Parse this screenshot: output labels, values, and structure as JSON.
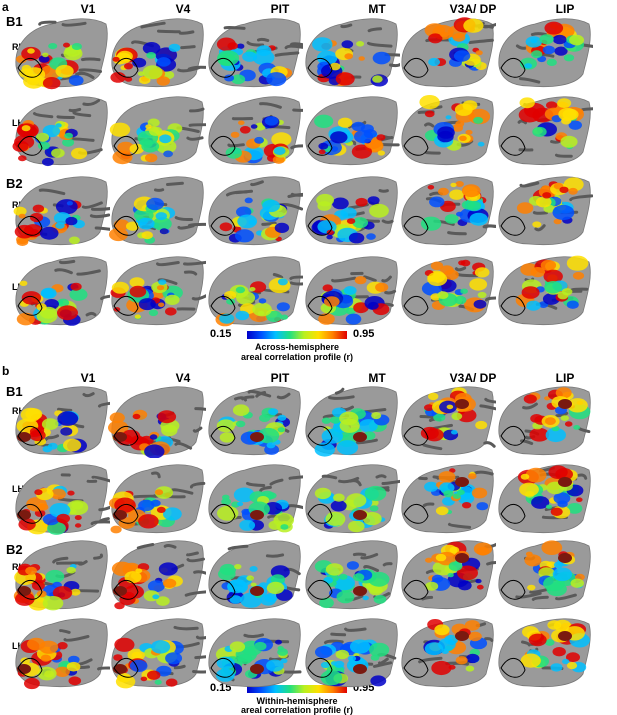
{
  "panel_a": {
    "letter": "a",
    "columns": [
      "V1",
      "V4",
      "PIT",
      "MT",
      "V3A/ DP",
      "LIP"
    ],
    "rows": [
      {
        "subject": "B1",
        "hemi": "RH"
      },
      {
        "subject": "",
        "hemi": "LH"
      },
      {
        "subject": "B2",
        "hemi": "RH"
      },
      {
        "subject": "",
        "hemi": "LH"
      }
    ],
    "colorbar": {
      "min": "0.15",
      "max": "0.95",
      "caption1": "Across-hemisphere",
      "caption2": "areal correlation profile (r)"
    }
  },
  "panel_b": {
    "letter": "b",
    "columns": [
      "V1",
      "V4",
      "PIT",
      "MT",
      "V3A/ DP",
      "LIP"
    ],
    "rows": [
      {
        "subject": "B1",
        "hemi": "RH"
      },
      {
        "subject": "",
        "hemi": "LH"
      },
      {
        "subject": "B2",
        "hemi": "RH"
      },
      {
        "subject": "",
        "hemi": "LH"
      }
    ],
    "colorbar": {
      "min": "0.15",
      "max": "0.95",
      "caption1": "Within-hemisphere",
      "caption2": "areal correlation profile (r)"
    }
  },
  "colors": {
    "cortex_dark": "#5a5a5a",
    "cortex_light": "#9a9a9a",
    "low": "#0000c8",
    "mid": "#20e080",
    "high": "#e00000",
    "seed": "#7a1a10"
  }
}
